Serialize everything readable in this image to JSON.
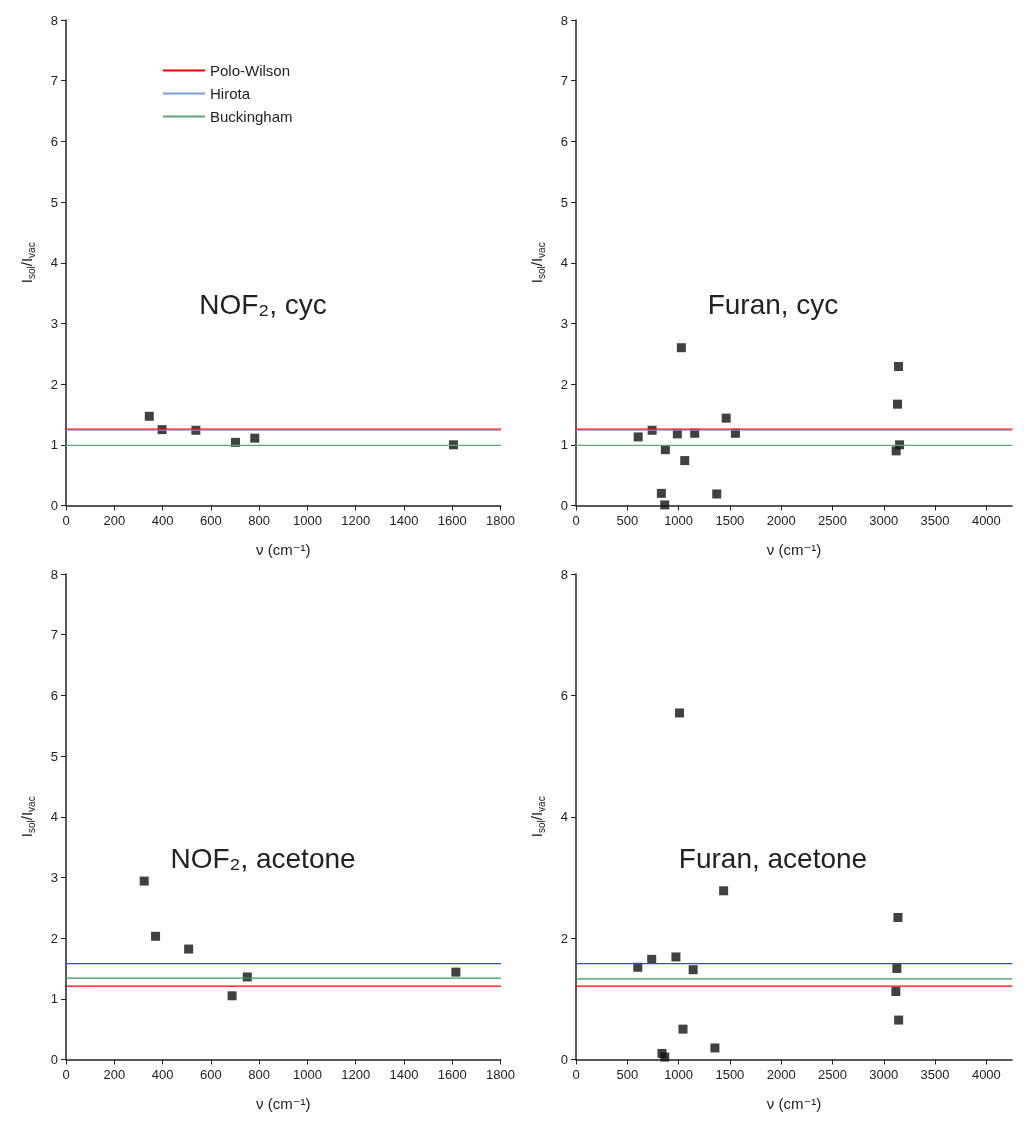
{
  "chart_data": [
    {
      "type": "scatter",
      "title": "NOF₂, cyc",
      "xlabel": "ν (cm⁻¹)",
      "ylabel": "I$_{sol}$/I$_{vac}$",
      "xlim": [
        0,
        1800
      ],
      "ylim": [
        0,
        8
      ],
      "xticks": [
        0,
        200,
        400,
        600,
        800,
        1000,
        1200,
        1400,
        1600,
        1800
      ],
      "yticks": [
        0,
        1,
        2,
        3,
        4,
        5,
        6,
        7,
        8
      ],
      "grid": false,
      "legend": "top left",
      "series": [
        {
          "name": "Polo-Wilson",
          "type": "line",
          "color": "#ff0000",
          "marker": "none",
          "x": [
            0,
            1800
          ],
          "values": [
            1.26,
            1.26
          ]
        },
        {
          "name": "Hirota",
          "type": "line",
          "color": "#7f9fd4",
          "marker": "none",
          "x": [
            0,
            1800
          ],
          "values": [
            1.24,
            1.24
          ]
        },
        {
          "name": "Buckingham",
          "type": "line",
          "color": "#5aa978",
          "marker": "none",
          "x": [
            0,
            1800
          ],
          "values": [
            0.99,
            0.99
          ]
        },
        {
          "color": "#111111",
          "marker": "square",
          "x": [
            345,
            398,
            538,
            702,
            782,
            1605
          ],
          "values": [
            1.47,
            1.25,
            1.24,
            1.04,
            1.11,
            1.0
          ]
        }
      ]
    },
    {
      "type": "scatter",
      "title": "Furan, cyc",
      "xlabel": "ν (cm⁻¹)",
      "ylabel": "I$_{sol}$/I$_{vac}$",
      "xlim": [
        0,
        4250
      ],
      "ylim": [
        0,
        8
      ],
      "xticks": [
        0,
        500,
        1000,
        1500,
        2000,
        2500,
        3000,
        3500,
        4000
      ],
      "yticks": [
        0,
        1,
        2,
        3,
        4,
        5,
        6,
        7,
        8
      ],
      "grid": false,
      "series": [
        {
          "type": "line",
          "color": "#ff0000",
          "marker": "none",
          "x": [
            0,
            4250
          ],
          "values": [
            1.26,
            1.26
          ]
        },
        {
          "type": "line",
          "color": "#7f9fd4",
          "marker": "none",
          "x": [
            0,
            4250
          ],
          "values": [
            1.24,
            1.24
          ]
        },
        {
          "type": "line",
          "color": "#5aa978",
          "marker": "none",
          "x": [
            0,
            4250
          ],
          "values": [
            0.99,
            0.99
          ]
        },
        {
          "color": "#111111",
          "marker": "square",
          "x": [
            606,
            742,
            832,
            871,
            865,
            988,
            1027,
            1060,
            1157,
            1372,
            1464,
            1554,
            3121,
            3134,
            3144,
            3154
          ],
          "values": [
            1.13,
            1.24,
            0.2,
            0.92,
            0.01,
            1.18,
            2.6,
            0.74,
            1.19,
            0.19,
            1.44,
            1.19,
            0.9,
            1.67,
            2.29,
            1.0
          ]
        }
      ]
    },
    {
      "type": "scatter",
      "title": "NOF₂, acetone",
      "xlabel": "ν (cm⁻¹)",
      "ylabel": "I$_{sol}$/I$_{vac}$",
      "xlim": [
        0,
        1800
      ],
      "ylim": [
        0,
        8
      ],
      "xticks": [
        0,
        200,
        400,
        600,
        800,
        1000,
        1200,
        1400,
        1600,
        1800
      ],
      "yticks": [
        0,
        1,
        2,
        3,
        4,
        5,
        6,
        7,
        8
      ],
      "grid": false,
      "series": [
        {
          "type": "line",
          "color": "#ff0000",
          "marker": "none",
          "x": [
            0,
            1800
          ],
          "values": [
            1.21,
            1.21
          ]
        },
        {
          "type": "line",
          "color": "#3050c0",
          "marker": "none",
          "x": [
            0,
            1800
          ],
          "values": [
            1.58,
            1.58
          ]
        },
        {
          "type": "line",
          "color": "#3a9a5a",
          "marker": "none",
          "x": [
            0,
            1800
          ],
          "values": [
            1.34,
            1.34
          ]
        },
        {
          "color": "#111111",
          "marker": "square",
          "x": [
            324,
            371,
            508,
            688,
            751,
            1615
          ],
          "values": [
            2.94,
            2.03,
            1.82,
            1.05,
            1.36,
            1.44
          ]
        }
      ]
    },
    {
      "type": "scatter",
      "title": "Furan, acetone",
      "xlabel": "ν (cm⁻¹)",
      "ylabel": "I$_{sol}$/I$_{vac}$",
      "xlim": [
        0,
        4250
      ],
      "ylim": [
        0,
        8
      ],
      "xticks": [
        0,
        500,
        1000,
        1500,
        2000,
        2500,
        3000,
        3500,
        4000
      ],
      "yticks": [
        0,
        2,
        4,
        6,
        8
      ],
      "grid": false,
      "series": [
        {
          "type": "line",
          "color": "#ff0000",
          "marker": "none",
          "x": [
            0,
            4250
          ],
          "values": [
            1.21,
            1.21
          ]
        },
        {
          "type": "line",
          "color": "#3050c0",
          "marker": "none",
          "x": [
            0,
            4250
          ],
          "values": [
            1.58,
            1.58
          ]
        },
        {
          "type": "line",
          "color": "#3a9a5a",
          "marker": "none",
          "x": [
            0,
            4250
          ],
          "values": [
            1.33,
            1.33
          ]
        },
        {
          "color": "#111111",
          "marker": "square",
          "x": [
            602,
            738,
            838,
            865,
            974,
            1009,
            1043,
            1142,
            1354,
            1439,
            3118,
            3128,
            3138,
            3145
          ],
          "values": [
            1.52,
            1.65,
            0.1,
            0.04,
            1.69,
            5.71,
            0.5,
            1.48,
            0.19,
            2.78,
            1.12,
            1.5,
            2.34,
            0.65
          ]
        }
      ]
    }
  ]
}
